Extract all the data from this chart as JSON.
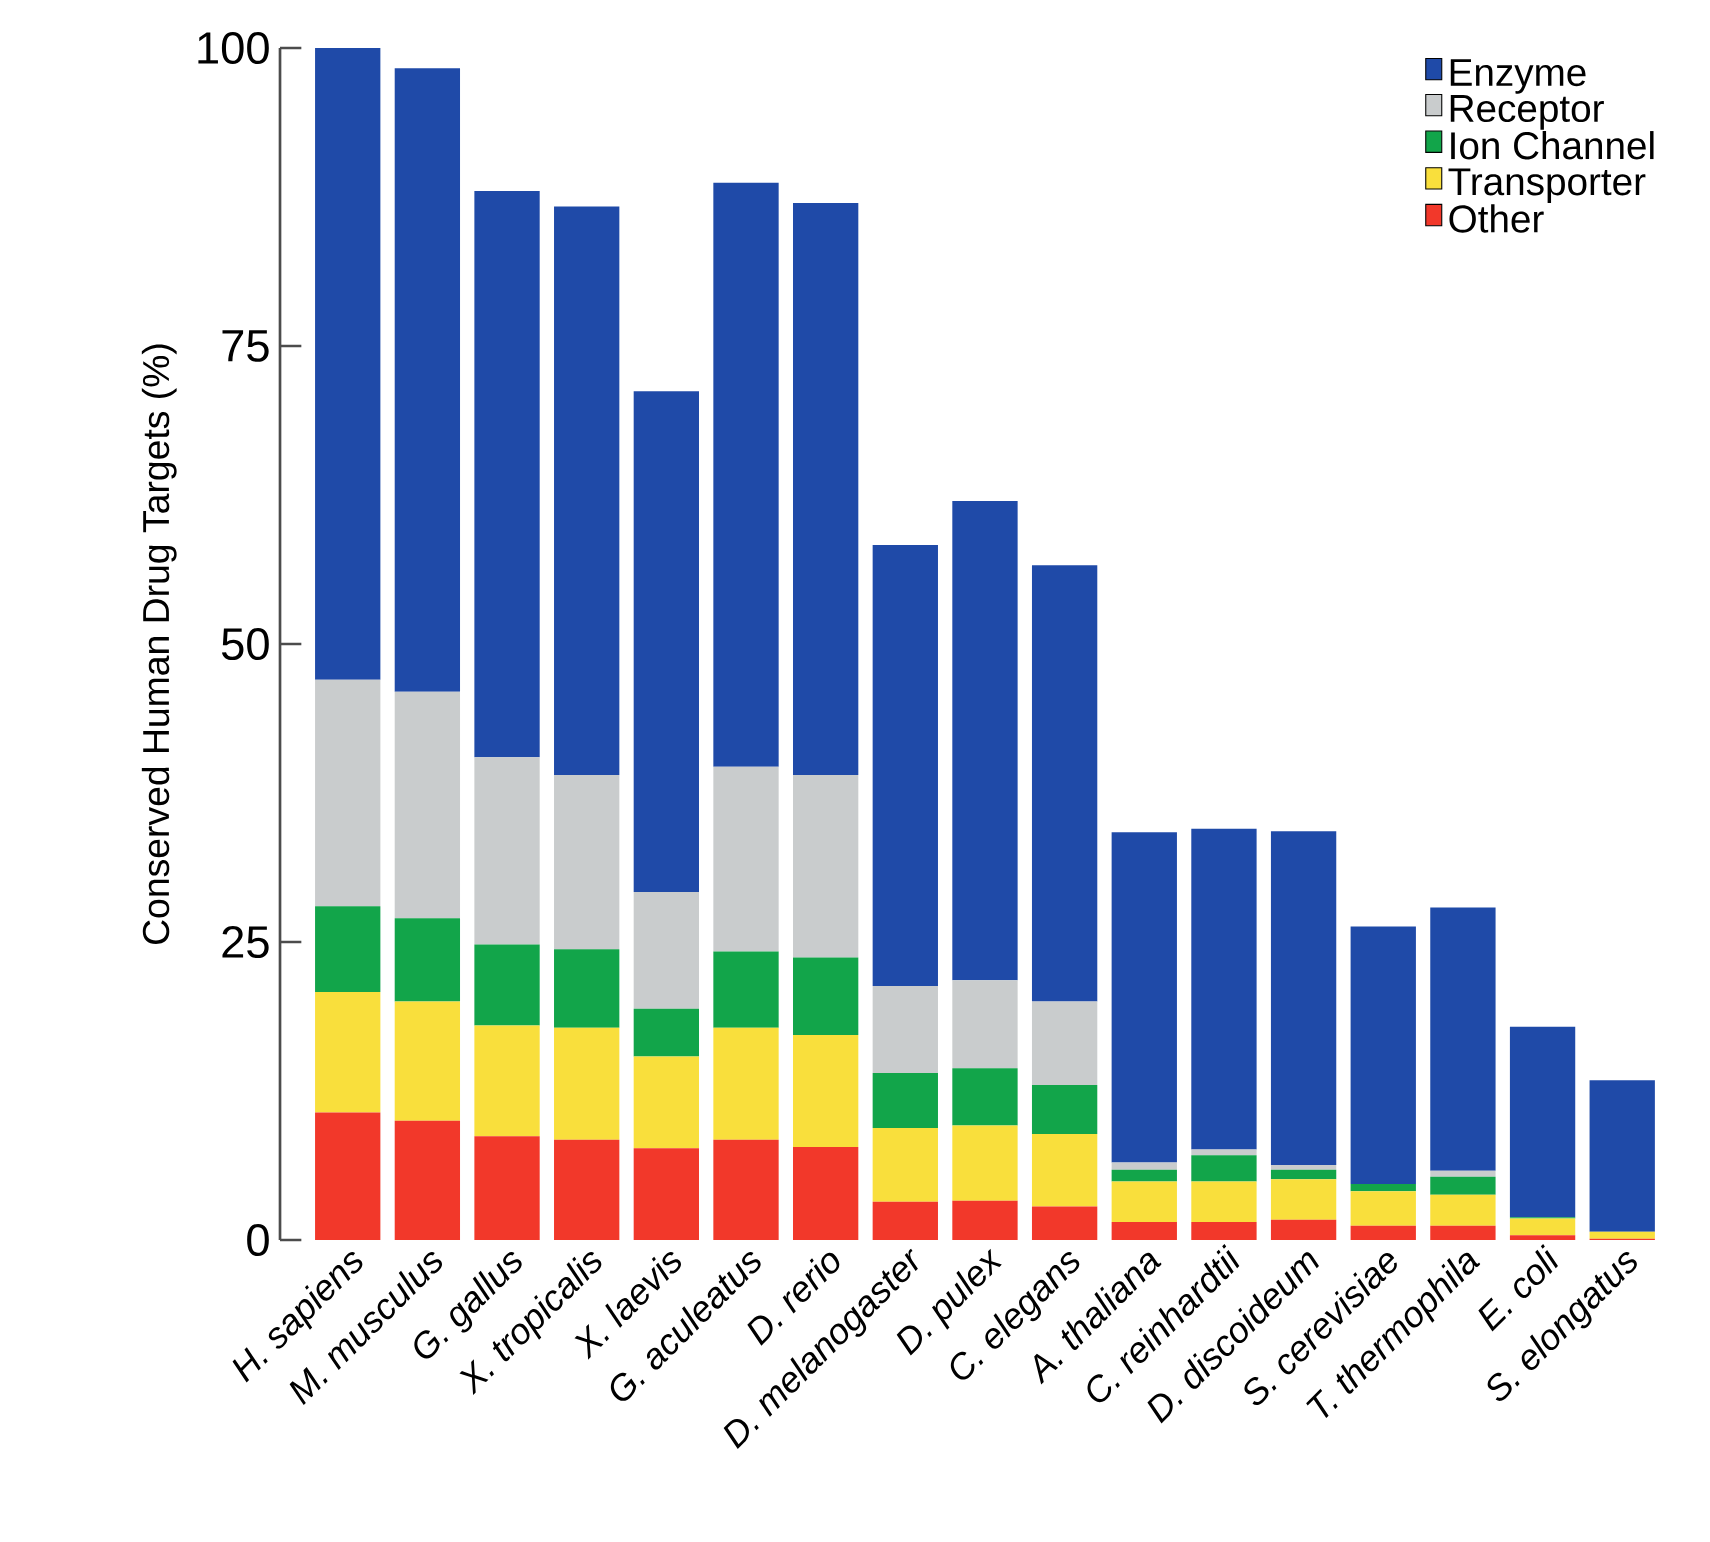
{
  "chart_data": {
    "type": "bar",
    "stacked": true,
    "ylabel": "Conserved Human Drug Targets (%)",
    "categories": [
      "H. sapiens",
      "M. musculus",
      "G. gallus",
      "X. tropicalis",
      "X. laevis",
      "G. aculeatus",
      "D. rerio",
      "D. melanogaster",
      "D. pulex",
      "C. elegans",
      "A. thaliana",
      "C. reinhardtii",
      "D. discoideum",
      "S. cerevisiae",
      "T. thermophila",
      "E. coli",
      "S. elongatus"
    ],
    "series": [
      {
        "name": "Other",
        "color": "#f2382a",
        "values": [
          10.7,
          10,
          8.7,
          8.4,
          7.7,
          8.4,
          7.8,
          3.2,
          3.3,
          2.8,
          1.5,
          1.5,
          1.7,
          1.2,
          1.2,
          0.4,
          0.1
        ]
      },
      {
        "name": "Transporter",
        "color": "#f9df3c",
        "values": [
          10.1,
          10,
          9.3,
          9.4,
          7.7,
          9.4,
          9.4,
          6.2,
          6.3,
          6.1,
          3.4,
          3.4,
          3.4,
          2.9,
          2.6,
          1.4,
          0.6
        ]
      },
      {
        "name": "Ion Channel",
        "color": "#12a54a",
        "values": [
          7.2,
          7,
          6.8,
          6.6,
          4,
          6.4,
          6.5,
          4.6,
          4.8,
          4.1,
          1,
          2.2,
          0.8,
          0.6,
          1.5,
          0.1,
          0
        ]
      },
      {
        "name": "Receptor",
        "color": "#c9cccd",
        "values": [
          19,
          19,
          15.7,
          14.6,
          9.8,
          15.5,
          15.3,
          7.3,
          7.4,
          7,
          0.6,
          0.5,
          0.4,
          null,
          0.5,
          null,
          null
        ]
      },
      {
        "name": "Enzyme",
        "color": "#1f4aa8",
        "values": [
          53,
          52.3,
          47.5,
          47.7,
          42,
          49,
          48,
          37,
          40.2,
          36.6,
          27.7,
          26.9,
          28,
          21.6,
          22.1,
          16,
          12.7
        ]
      }
    ],
    "ylim": [
      0,
      100
    ],
    "yticks": [
      0,
      25,
      50,
      75,
      100
    ],
    "grid": false,
    "legend": "top right"
  }
}
